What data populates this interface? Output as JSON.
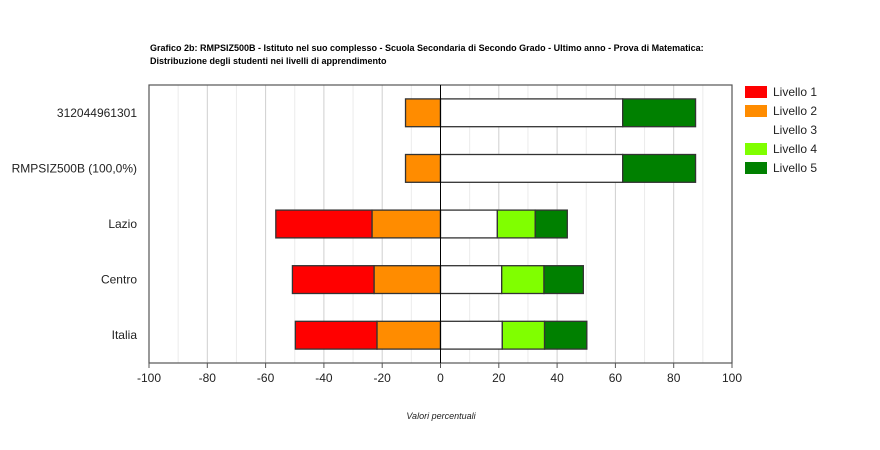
{
  "chart_data": {
    "type": "bar",
    "orientation": "horizontal",
    "stacked": "diverging",
    "title_line1": "Grafico 2b: RMPSIZ500B - Istituto nel suo complesso - Scuola Secondaria di Secondo Grado - Ultimo anno - Prova di Matematica:",
    "title_line2": "Distribuzione degli studenti nei livelli di apprendimento",
    "xlabel": "Valori percentuali",
    "ylabel": "",
    "xlim": [
      -100,
      100
    ],
    "xticks": [
      -100,
      -80,
      -60,
      -40,
      -20,
      0,
      20,
      40,
      60,
      80,
      100
    ],
    "xtick_labels": [
      "-100",
      "-80",
      "-60",
      "-40",
      "-20",
      "0",
      "20",
      "40",
      "60",
      "80",
      "100"
    ],
    "grid": true,
    "legend_position": "right",
    "categories": [
      "312044961301",
      "RMPSIZ500B (100,0%)",
      "Lazio",
      "Centro",
      "Italia"
    ],
    "series": [
      {
        "name": "Livello 1",
        "color": "#ff0000",
        "side": "negative",
        "values": [
          0.0,
          0.0,
          33.0,
          28.0,
          28.0
        ]
      },
      {
        "name": "Livello 2",
        "color": "#ff8c00",
        "side": "negative",
        "values": [
          12.0,
          12.0,
          23.5,
          22.8,
          21.8
        ]
      },
      {
        "name": "Livello 3",
        "color": "#ffffff",
        "side": "positive",
        "values": [
          62.5,
          62.5,
          19.5,
          21.0,
          21.2
        ]
      },
      {
        "name": "Livello 4",
        "color": "#80ff00",
        "side": "positive",
        "values": [
          0.0,
          0.0,
          13.0,
          14.5,
          14.5
        ]
      },
      {
        "name": "Livello 5",
        "color": "#008000",
        "side": "positive",
        "values": [
          25.0,
          25.0,
          11.0,
          13.5,
          14.5
        ]
      }
    ]
  }
}
